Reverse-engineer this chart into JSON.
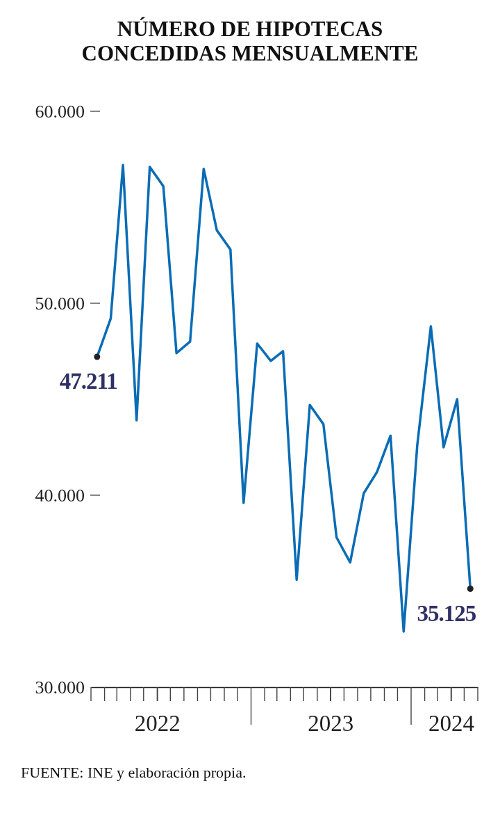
{
  "chart_data": {
    "type": "line",
    "title": "NÚMERO DE HIPOTECAS\nCONCEDIDAS MENSUALMENTE",
    "x": [
      "2022-01-15",
      "2022-02-15",
      "2022-03-15",
      "2022-04-15",
      "2022-05-15",
      "2022-06-15",
      "2022-07-15",
      "2022-08-15",
      "2022-09-15",
      "2022-10-15",
      "2022-11-15",
      "2022-12-15",
      "2023-01-15",
      "2023-02-15",
      "2023-03-15",
      "2023-04-15",
      "2023-05-15",
      "2023-06-15",
      "2023-07-15",
      "2023-08-15",
      "2023-09-15",
      "2023-10-15",
      "2023-11-15",
      "2023-12-15",
      "2024-01-15",
      "2024-02-15",
      "2024-03-15",
      "2024-04-15",
      "2024-05-15"
    ],
    "series": [
      {
        "color": "#0a6cb5",
        "values": [
          47211,
          49200,
          57200,
          43900,
          57100,
          56100,
          47400,
          48000,
          57000,
          53800,
          52800,
          39600,
          47900,
          47000,
          47500,
          35600,
          44700,
          43700,
          37800,
          36500,
          40100,
          41200,
          43100,
          32900,
          42600,
          48800,
          42500,
          45000,
          35125
        ],
        "value_labels": [
          "47.211",
          null,
          null,
          null,
          null,
          null,
          null,
          null,
          null,
          null,
          null,
          null,
          null,
          null,
          null,
          null,
          null,
          null,
          null,
          null,
          null,
          null,
          null,
          null,
          null,
          null,
          null,
          null,
          "35.125"
        ]
      }
    ],
    "ylim": [
      30000,
      60000
    ],
    "yticks": [
      {
        "value": 30000,
        "label": "30.000"
      },
      {
        "value": 40000,
        "label": "40.000"
      },
      {
        "value": 50000,
        "label": "50.000"
      },
      {
        "value": 60000,
        "label": "60.000"
      }
    ],
    "xlim": [
      "2022-01-01",
      "2024-06-01"
    ],
    "xticks": [
      {
        "value": "2022-06-01",
        "label": "2022"
      },
      {
        "value": "2023-07-01",
        "label": "2023"
      },
      {
        "value": "2024-04-01",
        "label": "2024"
      }
    ],
    "grid": false,
    "marker": "none",
    "line_style": "solid",
    "annotations": [
      "FUENTE: INE y elaboración propia."
    ]
  }
}
